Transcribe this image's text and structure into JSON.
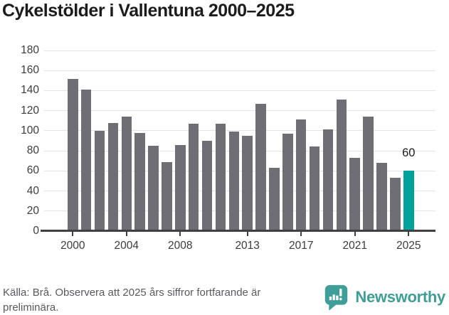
{
  "title": "Cykelstölder i Vallentuna 2000–2025",
  "chart_data": {
    "type": "bar",
    "title": "Cykelstölder i Vallentuna 2000–2025",
    "categories": [
      2000,
      2001,
      2002,
      2003,
      2004,
      2005,
      2006,
      2007,
      2008,
      2009,
      2010,
      2011,
      2012,
      2013,
      2014,
      2015,
      2016,
      2017,
      2018,
      2019,
      2020,
      2021,
      2022,
      2023,
      2024,
      2025
    ],
    "values": [
      152,
      141,
      100,
      108,
      114,
      98,
      85,
      69,
      86,
      107,
      90,
      107,
      99,
      95,
      127,
      63,
      97,
      111,
      84,
      101,
      131,
      73,
      114,
      68,
      53,
      60
    ],
    "highlight": {
      "year": 2025,
      "index": 25,
      "value": 60,
      "label": "60"
    },
    "ylim": [
      0,
      180
    ],
    "yticks": [
      0,
      20,
      40,
      60,
      80,
      100,
      120,
      140,
      160,
      180
    ],
    "xticks": [
      2000,
      2004,
      2008,
      2013,
      2017,
      2021,
      2025
    ],
    "grid": "horizontal",
    "legend": "none",
    "xlabel": "",
    "ylabel": ""
  },
  "colors": {
    "bar": "#6e6e74",
    "highlight": "#00a39c",
    "gridline": "#e4e4e4",
    "axis": "#404040",
    "title_text": "#1c1c1c",
    "tick_text": "#3c3c3c",
    "footer_text": "#5a5a5e",
    "brand_teal": "#3f9e97"
  },
  "footer": {
    "source_note": "Källa: Brå. Observera att 2025 års siffror fortfarande är preliminära.",
    "brand": "Newsworthy"
  }
}
